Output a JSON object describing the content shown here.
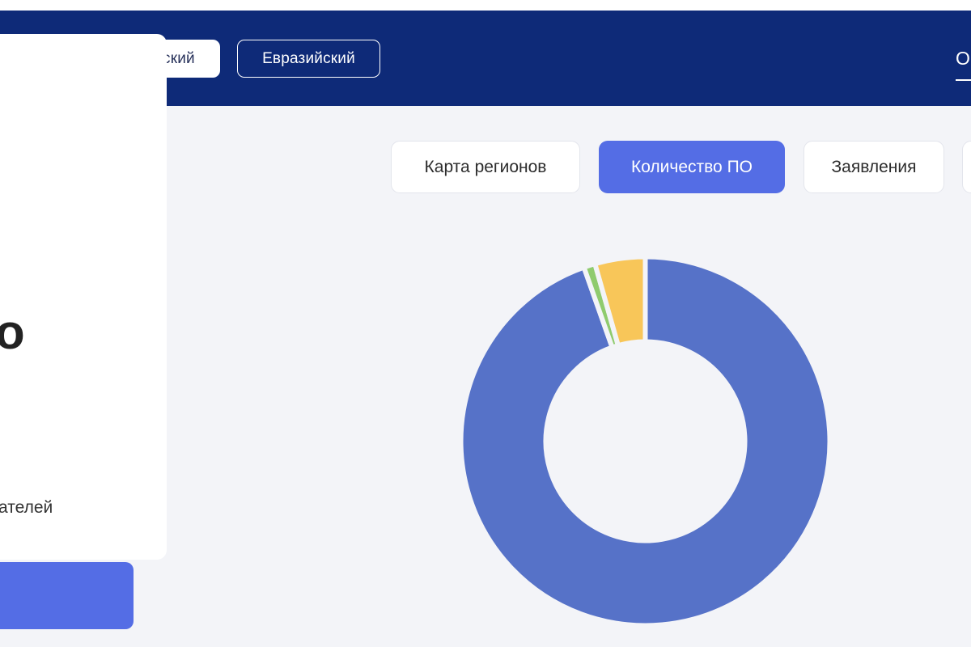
{
  "header": {
    "segments": [
      {
        "label": "Российский",
        "active": true
      },
      {
        "label": "Евразийский",
        "active": false
      }
    ],
    "right_glyph": "О"
  },
  "left_panel": {
    "big_text_fragment": "о",
    "small_text_fragment": "ателей"
  },
  "tabs": [
    {
      "label": "Карта регионов",
      "active": false
    },
    {
      "label": "Количество ПО",
      "active": true
    },
    {
      "label": "Заявления",
      "active": false
    },
    {
      "label": "",
      "active": false
    }
  ],
  "chart_data": {
    "type": "pie",
    "donut": true,
    "slices": [
      {
        "value": 94.6,
        "color": "#5672c8"
      },
      {
        "value": 1.0,
        "color": "#8fcb6e"
      },
      {
        "value": 4.4,
        "color": "#f8c659"
      }
    ]
  },
  "colors": {
    "header_bg": "#0e2a78",
    "accent": "#546de5",
    "page_bg": "#f3f4f8"
  }
}
